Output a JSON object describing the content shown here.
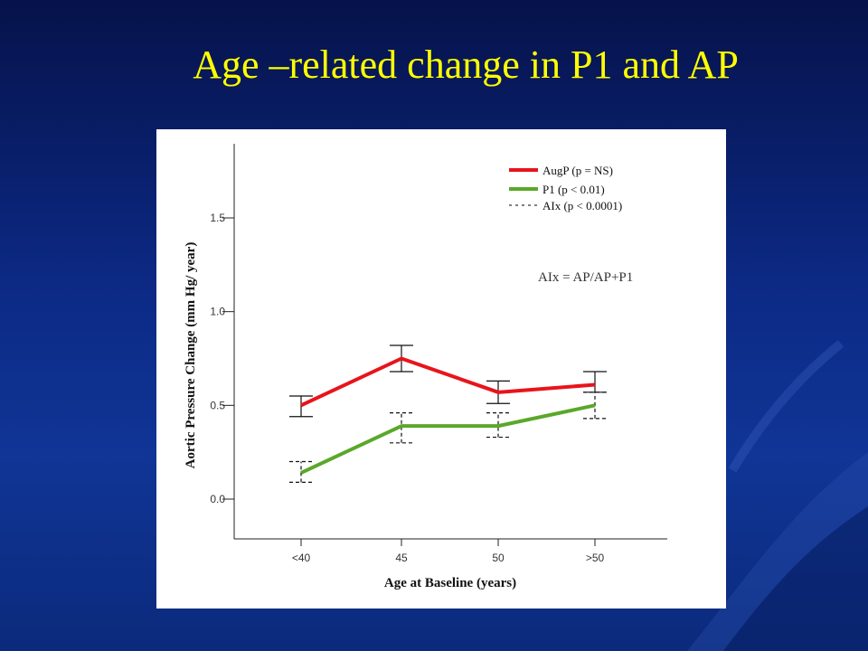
{
  "slide": {
    "title": "Age –related change in P1 and AP"
  },
  "colors": {
    "background": "#0c2a86",
    "title": "#ffff00",
    "augp": "#e8141c",
    "p1": "#5aa82a",
    "aix": "#000000"
  },
  "chart_data": {
    "type": "line",
    "categories": [
      "<40",
      "45",
      "50",
      ">50"
    ],
    "xlabel": "Age at Baseline (years)",
    "ylabel": "Aortic Pressure Change (mm Hg/ year)",
    "ylim": [
      -0.2,
      1.9
    ],
    "yticks": [
      "0.0",
      "0.5",
      "1.0",
      "1.5"
    ],
    "ytick_values": [
      0,
      0.5,
      1.0,
      1.5
    ],
    "grid": false,
    "legend_position": "top-right",
    "series": [
      {
        "name": "AugP (p = NS)",
        "style": "solid",
        "color": "#e8141c",
        "values": [
          0.5,
          0.75,
          0.57,
          0.61
        ],
        "error_low": [
          0.44,
          0.68,
          0.51,
          0.57
        ],
        "error_high": [
          0.55,
          0.82,
          0.63,
          0.68
        ]
      },
      {
        "name": "P1 (p < 0.01)",
        "style": "solid",
        "color": "#5aa82a",
        "values": [
          0.14,
          0.39,
          0.39,
          0.5
        ],
        "error_low": [
          0.09,
          0.3,
          0.33,
          0.43
        ],
        "error_high": [
          0.2,
          0.46,
          0.46,
          0.57
        ]
      },
      {
        "name": "AIx (p < 0.0001)",
        "style": "dashed",
        "color": "#000000"
      }
    ],
    "annotations": [
      "AIx = AP/AP+P1"
    ]
  }
}
